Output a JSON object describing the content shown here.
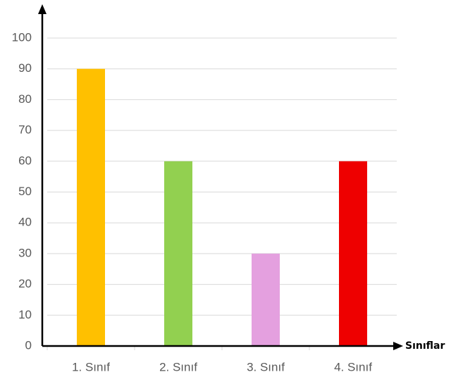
{
  "chart_data": {
    "type": "bar",
    "x_label": "Sınıflar",
    "categories": [
      "1. Sınıf",
      "2. Sınıf",
      "3. Sınıf",
      "4. Sınıf"
    ],
    "values": [
      90,
      60,
      30,
      60
    ],
    "colors": [
      "#ffc000",
      "#92d050",
      "#e4a0df",
      "#ee0000"
    ],
    "ylim": [
      0,
      100
    ],
    "yticks": [
      0,
      10,
      20,
      30,
      40,
      50,
      60,
      70,
      80,
      90,
      100
    ],
    "grid": true
  }
}
